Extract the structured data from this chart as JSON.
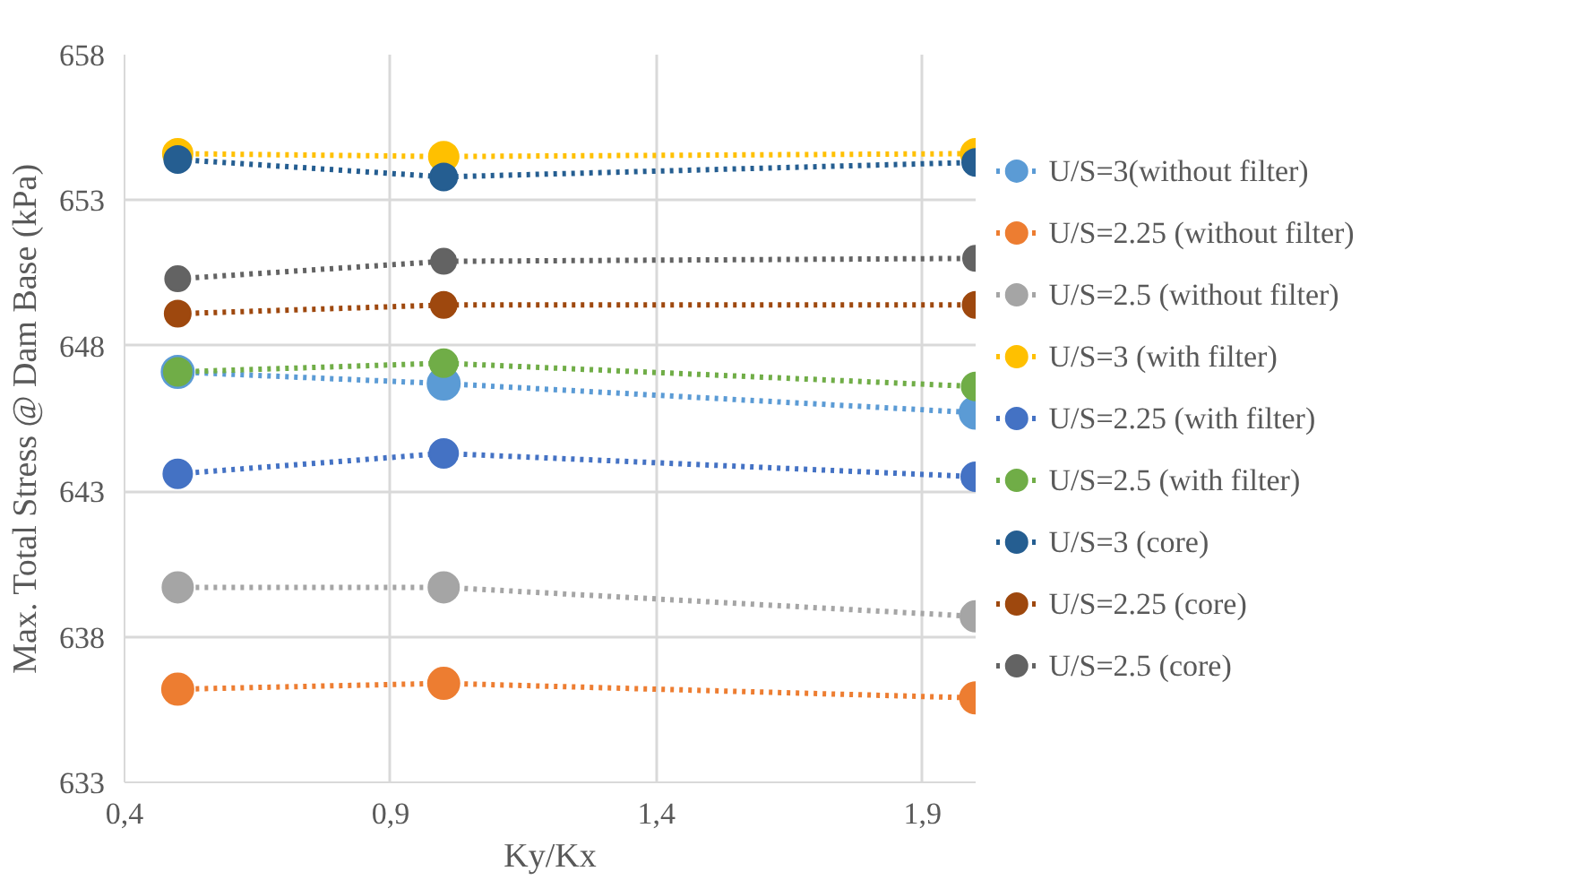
{
  "chart_data": {
    "type": "line",
    "xlabel": "Ky/Kx",
    "ylabel": "Max. Total Stress @ Dam Base (kPa)",
    "x": [
      0.5,
      1.0,
      2.0
    ],
    "xlim": [
      0.4,
      2.0
    ],
    "xticks": [
      {
        "value": 0.4,
        "label": "0,4"
      },
      {
        "value": 0.9,
        "label": "0,9"
      },
      {
        "value": 1.4,
        "label": "1,4"
      },
      {
        "value": 1.9,
        "label": "1,9"
      }
    ],
    "ylim": [
      633,
      658
    ],
    "yticks": [
      633,
      638,
      643,
      648,
      653,
      658
    ],
    "grid": true,
    "legend": "right",
    "marker": "circle",
    "line_style": "dotted",
    "series": [
      {
        "name": "U/S=3(without filter)",
        "color": "#5b9bd5",
        "values": [
          647.1,
          646.7,
          645.7
        ]
      },
      {
        "name": "U/S=2.25 (without filter)",
        "color": "#ed7d31",
        "values": [
          636.2,
          636.4,
          635.9
        ]
      },
      {
        "name": "U/S=2.5 (without filter)",
        "color": "#a5a5a5",
        "values": [
          639.7,
          639.7,
          638.7
        ]
      },
      {
        "name": "U/S=3 (with filter)",
        "color": "#ffc000",
        "values": [
          654.6,
          654.5,
          654.6
        ]
      },
      {
        "name": "U/S=2.25 (with filter)",
        "color": "#4472c4",
        "values": [
          643.6,
          644.3,
          643.5
        ]
      },
      {
        "name": "U/S=2.5 (with filter)",
        "color": "#70ad47",
        "values": [
          647.1,
          647.4,
          646.6
        ]
      },
      {
        "name": "U/S=3 (core)",
        "color": "#255e91",
        "values": [
          654.4,
          653.8,
          654.3
        ]
      },
      {
        "name": "U/S=2.25 (core)",
        "color": "#9e480e",
        "values": [
          649.1,
          649.4,
          649.4
        ]
      },
      {
        "name": "U/S=2.5 (core)",
        "color": "#636363",
        "values": [
          650.3,
          650.9,
          651.0
        ]
      }
    ]
  }
}
